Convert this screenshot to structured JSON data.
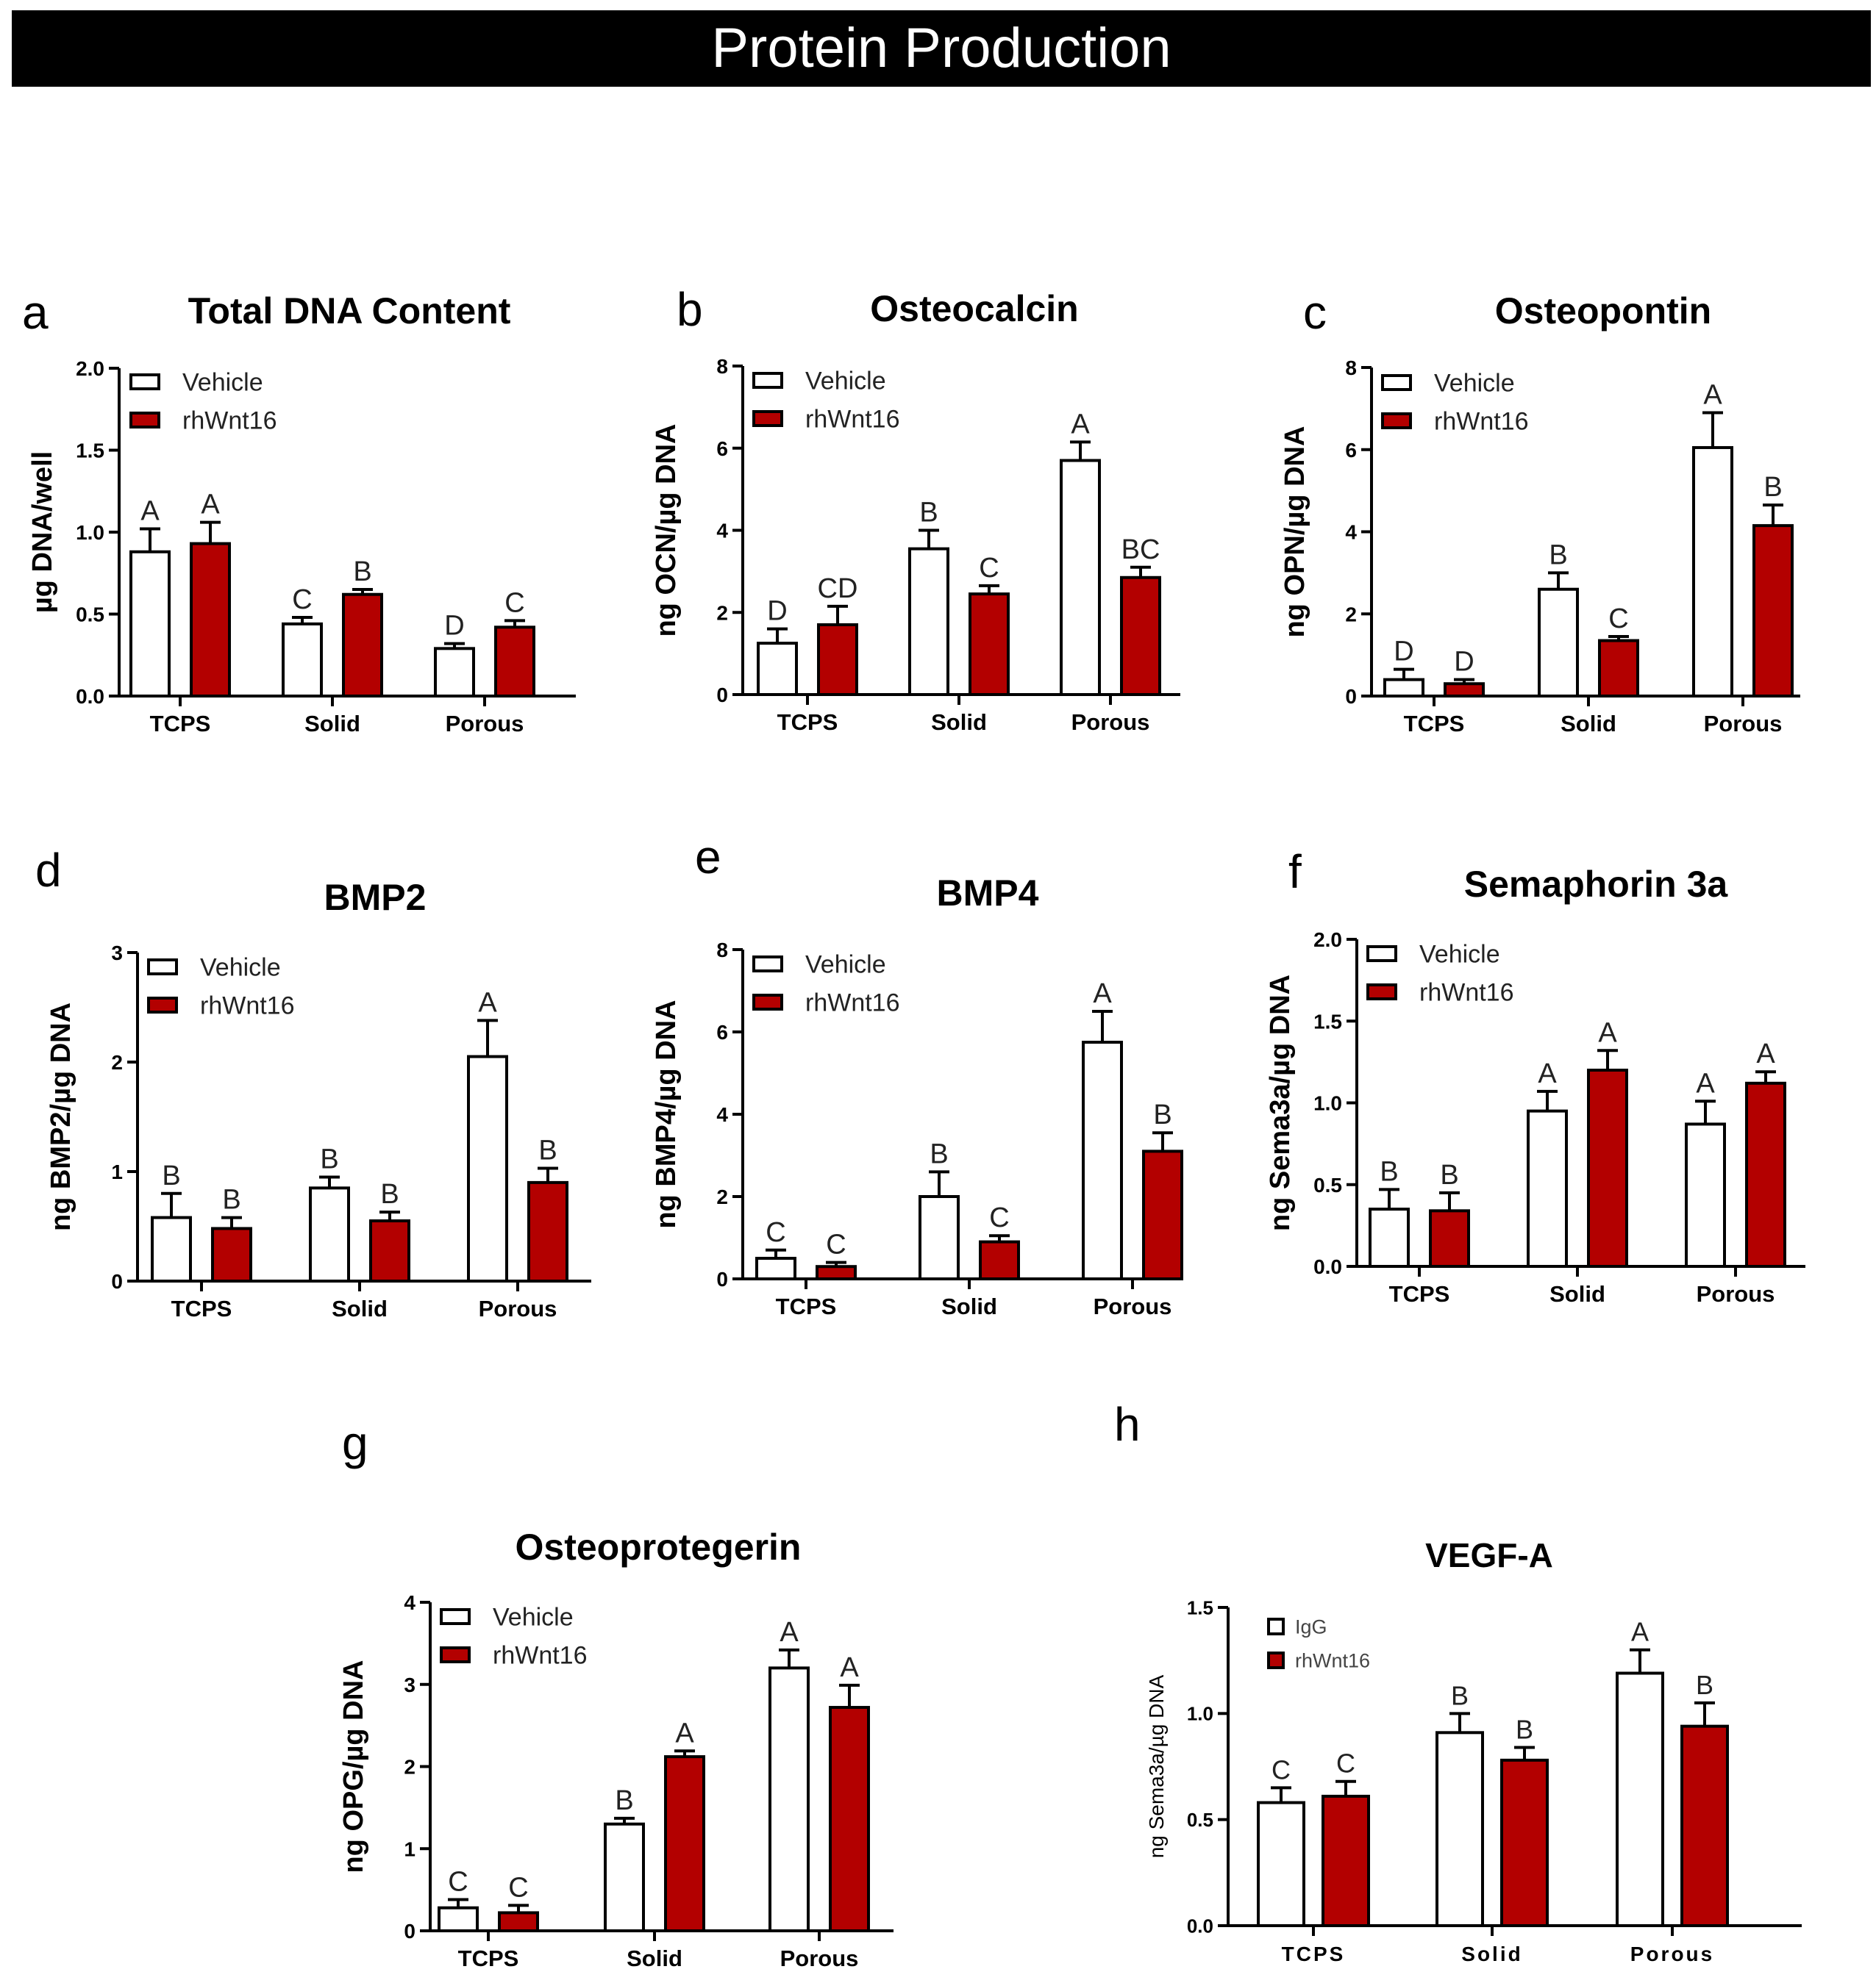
{
  "header": {
    "title": "Protein Production"
  },
  "colors": {
    "vehicle": "#ffffff",
    "treatment": "#b30000",
    "stroke": "#000000"
  },
  "chart_data": [
    {
      "id": "a",
      "type": "bar",
      "panel_label": "a",
      "title": "Total DNA Content",
      "ylabel": "µg DNA/well",
      "ylim": [
        0,
        2.0
      ],
      "yticks": [
        "0.0",
        "0.5",
        "1.0",
        "1.5",
        "2.0"
      ],
      "categories": [
        "TCPS",
        "Solid",
        "Porous"
      ],
      "legend": [
        "Vehicle",
        "rhWnt16"
      ],
      "series": [
        {
          "name": "Vehicle",
          "values": [
            0.88,
            0.44,
            0.29
          ],
          "errors": [
            0.14,
            0.04,
            0.03
          ],
          "letters": [
            "A",
            "C",
            "D"
          ]
        },
        {
          "name": "rhWnt16",
          "values": [
            0.93,
            0.62,
            0.42
          ],
          "errors": [
            0.13,
            0.03,
            0.04
          ],
          "letters": [
            "A",
            "B",
            "C"
          ]
        }
      ]
    },
    {
      "id": "b",
      "type": "bar",
      "panel_label": "b",
      "title": "Osteocalcin",
      "ylabel": "ng OCN/µg DNA",
      "ylim": [
        0,
        8
      ],
      "yticks": [
        "0",
        "2",
        "4",
        "6",
        "8"
      ],
      "categories": [
        "TCPS",
        "Solid",
        "Porous"
      ],
      "legend": [
        "Vehicle",
        "rhWnt16"
      ],
      "series": [
        {
          "name": "Vehicle",
          "values": [
            1.25,
            3.55,
            5.7
          ],
          "errors": [
            0.35,
            0.45,
            0.45
          ],
          "letters": [
            "D",
            "B",
            "A"
          ]
        },
        {
          "name": "rhWnt16",
          "values": [
            1.7,
            2.45,
            2.85
          ],
          "errors": [
            0.45,
            0.2,
            0.25
          ],
          "letters": [
            "CD",
            "C",
            "BC"
          ]
        }
      ]
    },
    {
      "id": "c",
      "type": "bar",
      "panel_label": "c",
      "title": "Osteopontin",
      "ylabel": "ng OPN/µg DNA",
      "ylim": [
        0,
        8
      ],
      "yticks": [
        "0",
        "2",
        "4",
        "6",
        "8"
      ],
      "categories": [
        "TCPS",
        "Solid",
        "Porous"
      ],
      "legend": [
        "Vehicle",
        "rhWnt16"
      ],
      "series": [
        {
          "name": "Vehicle",
          "values": [
            0.4,
            2.6,
            6.05
          ],
          "errors": [
            0.25,
            0.4,
            0.85
          ],
          "letters": [
            "D",
            "B",
            "A"
          ]
        },
        {
          "name": "rhWnt16",
          "values": [
            0.3,
            1.35,
            4.15
          ],
          "errors": [
            0.1,
            0.1,
            0.5
          ],
          "letters": [
            "D",
            "C",
            "B"
          ]
        }
      ]
    },
    {
      "id": "d",
      "type": "bar",
      "panel_label": "d",
      "title": "BMP2",
      "ylabel": "ng BMP2/µg DNA",
      "ylim": [
        0,
        3
      ],
      "yticks": [
        "0",
        "1",
        "2",
        "3"
      ],
      "categories": [
        "TCPS",
        "Solid",
        "Porous"
      ],
      "legend": [
        "Vehicle",
        "rhWnt16"
      ],
      "series": [
        {
          "name": "Vehicle",
          "values": [
            0.58,
            0.85,
            2.05
          ],
          "errors": [
            0.22,
            0.1,
            0.33
          ],
          "letters": [
            "B",
            "B",
            "A"
          ]
        },
        {
          "name": "rhWnt16",
          "values": [
            0.48,
            0.55,
            0.9
          ],
          "errors": [
            0.1,
            0.08,
            0.13
          ],
          "letters": [
            "B",
            "B",
            "B"
          ]
        }
      ]
    },
    {
      "id": "e",
      "type": "bar",
      "panel_label": "e",
      "title": "BMP4",
      "ylabel": "ng BMP4/µg DNA",
      "ylim": [
        0,
        8
      ],
      "yticks": [
        "0",
        "2",
        "4",
        "6",
        "8"
      ],
      "categories": [
        "TCPS",
        "Solid",
        "Porous"
      ],
      "legend": [
        "Vehicle",
        "rhWnt16"
      ],
      "series": [
        {
          "name": "Vehicle",
          "values": [
            0.5,
            2.0,
            5.75
          ],
          "errors": [
            0.2,
            0.6,
            0.75
          ],
          "letters": [
            "C",
            "B",
            "A"
          ]
        },
        {
          "name": "rhWnt16",
          "values": [
            0.3,
            0.9,
            3.1
          ],
          "errors": [
            0.1,
            0.15,
            0.45
          ],
          "letters": [
            "C",
            "C",
            "B"
          ]
        }
      ]
    },
    {
      "id": "f",
      "type": "bar",
      "panel_label": "f",
      "title": "Semaphorin 3a",
      "ylabel": "ng Sema3a/µg DNA",
      "ylim": [
        0,
        2.0
      ],
      "yticks": [
        "0.0",
        "0.5",
        "1.0",
        "1.5",
        "2.0"
      ],
      "categories": [
        "TCPS",
        "Solid",
        "Porous"
      ],
      "legend": [
        "Vehicle",
        "rhWnt16"
      ],
      "series": [
        {
          "name": "Vehicle",
          "values": [
            0.35,
            0.95,
            0.87
          ],
          "errors": [
            0.12,
            0.12,
            0.14
          ],
          "letters": [
            "B",
            "A",
            "A"
          ]
        },
        {
          "name": "rhWnt16",
          "values": [
            0.34,
            1.2,
            1.12
          ],
          "errors": [
            0.11,
            0.12,
            0.07
          ],
          "letters": [
            "B",
            "A",
            "A"
          ]
        }
      ]
    },
    {
      "id": "g",
      "type": "bar",
      "panel_label": "g",
      "title": "Osteoprotegerin",
      "ylabel": "ng OPG/µg DNA",
      "ylim": [
        0,
        4
      ],
      "yticks": [
        "0",
        "1",
        "2",
        "3",
        "4"
      ],
      "categories": [
        "TCPS",
        "Solid",
        "Porous"
      ],
      "legend": [
        "Vehicle",
        "rhWnt16"
      ],
      "series": [
        {
          "name": "Vehicle",
          "values": [
            0.28,
            1.3,
            3.2
          ],
          "errors": [
            0.1,
            0.07,
            0.22
          ],
          "letters": [
            "C",
            "B",
            "A"
          ]
        },
        {
          "name": "rhWnt16",
          "values": [
            0.22,
            2.12,
            2.72
          ],
          "errors": [
            0.09,
            0.07,
            0.27
          ],
          "letters": [
            "C",
            "A",
            "A"
          ]
        }
      ]
    },
    {
      "id": "h",
      "type": "bar",
      "panel_label": "h",
      "title": "VEGF-A",
      "ylabel": "ng Sema3a/µg DNA",
      "ylim": [
        0,
        1.5
      ],
      "yticks": [
        "0.0",
        "0.5",
        "1.0",
        "1.5"
      ],
      "categories": [
        "TCPS",
        "Solid",
        "Porous"
      ],
      "legend": [
        "IgG",
        "rhWnt16"
      ],
      "series": [
        {
          "name": "IgG",
          "values": [
            0.58,
            0.91,
            1.19
          ],
          "errors": [
            0.07,
            0.09,
            0.11
          ],
          "letters": [
            "C",
            "B",
            "A"
          ]
        },
        {
          "name": "rhWnt16",
          "values": [
            0.61,
            0.78,
            0.94
          ],
          "errors": [
            0.07,
            0.06,
            0.11
          ],
          "letters": [
            "C",
            "B",
            "B"
          ]
        }
      ]
    }
  ]
}
